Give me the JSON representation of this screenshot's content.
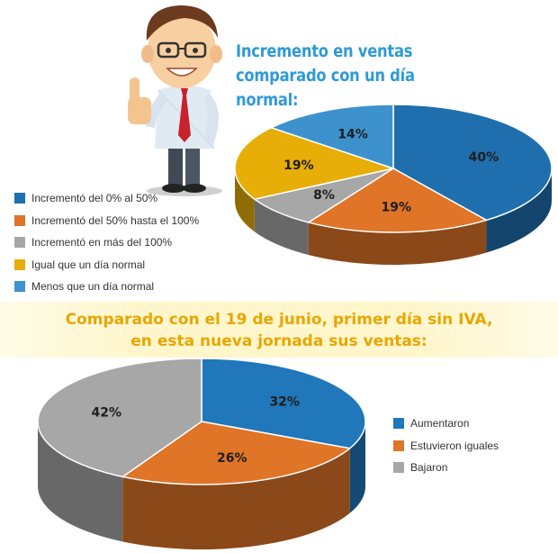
{
  "header": {
    "title_line1": "Incremento en ventas",
    "title_line2": "comparado con un día normal:"
  },
  "section2": {
    "title_line1": "Comparado con el 19 de junio, primer día sin IVA,",
    "title_line2": "en esta nueva jornada sus ventas:"
  },
  "chart_data": [
    {
      "type": "pie",
      "title": "Incremento en ventas comparado con un día normal:",
      "labels": [
        "Incrementó del 0% al 50%",
        "Incrementó del 50% hasta el 100%",
        "Incrementó en más del 100%",
        "Igual que un día normal",
        "Menos que un día normal"
      ],
      "values": [
        40,
        19,
        8,
        19,
        14
      ],
      "value_labels": [
        "40%",
        "19%",
        "8%",
        "19%",
        "14%"
      ],
      "colors": [
        "#1f6fae",
        "#e07427",
        "#a7a7a7",
        "#e6ae07",
        "#3d92cd"
      ],
      "legend_position": "left"
    },
    {
      "type": "pie",
      "title": "Comparado con el 19 de junio, primer día sin IVA, en esta nueva jornada sus ventas:",
      "labels": [
        "Aumentaron",
        "Estuvieron iguales",
        "Bajaron"
      ],
      "values": [
        32,
        26,
        42
      ],
      "value_labels": [
        "32%",
        "26%",
        "42%"
      ],
      "colors": [
        "#2077b9",
        "#e07427",
        "#a7a7a7"
      ],
      "legend_position": "right"
    }
  ]
}
